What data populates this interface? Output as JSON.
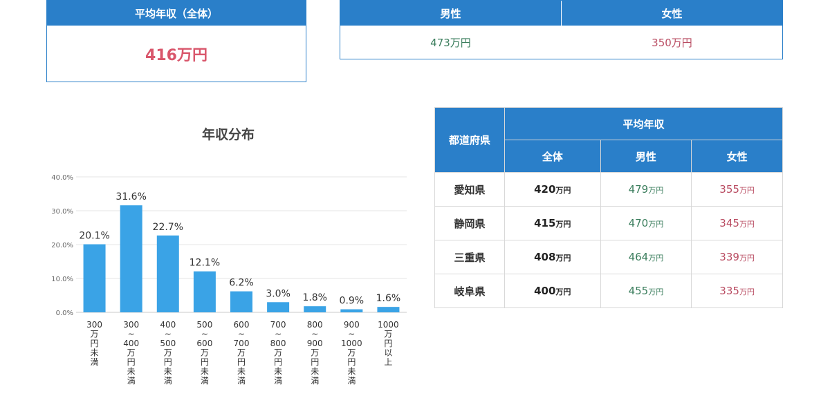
{
  "summary": {
    "overall": {
      "label": "平均年収（全体）",
      "value": "416万円"
    },
    "male": {
      "label": "男性",
      "value": "473万円"
    },
    "female": {
      "label": "女性",
      "value": "350万円"
    }
  },
  "chart_data": {
    "type": "bar",
    "title": "年収分布",
    "categories": [
      "300万円未満",
      "300〜400万円未満",
      "400〜500万円未満",
      "500〜600万円未満",
      "600〜700万円未満",
      "700〜800万円未満",
      "800〜900万円未満",
      "900〜1000万円未満",
      "1000万円以上"
    ],
    "category_lines": [
      [
        "300",
        "万",
        "円",
        "未",
        "満"
      ],
      [
        "300",
        "~",
        "400",
        "万",
        "円",
        "未",
        "満"
      ],
      [
        "400",
        "~",
        "500",
        "万",
        "円",
        "未",
        "満"
      ],
      [
        "500",
        "~",
        "600",
        "万",
        "円",
        "未",
        "満"
      ],
      [
        "600",
        "~",
        "700",
        "万",
        "円",
        "未",
        "満"
      ],
      [
        "700",
        "~",
        "800",
        "万",
        "円",
        "未",
        "満"
      ],
      [
        "800",
        "~",
        "900",
        "万",
        "円",
        "未",
        "満"
      ],
      [
        "900",
        "~",
        "1000",
        "万",
        "円",
        "未",
        "満"
      ],
      [
        "1000",
        "万",
        "円",
        "以",
        "上"
      ]
    ],
    "values": [
      20.1,
      31.6,
      22.7,
      12.1,
      6.2,
      3.0,
      1.8,
      0.9,
      1.6
    ],
    "data_labels": [
      "20.1%",
      "31.6%",
      "22.7%",
      "12.1%",
      "6.2%",
      "3.0%",
      "1.8%",
      "0.9%",
      "1.6%"
    ],
    "ylim": [
      0,
      40
    ],
    "yticks": [
      0,
      10,
      20,
      30,
      40
    ],
    "ytick_labels": [
      "0.0%",
      "10.0%",
      "20.0%",
      "30.0%",
      "40.0%"
    ],
    "grid": true,
    "bar_color": "#3aa3e6"
  },
  "prefecture_table": {
    "header_pref": "都道府県",
    "header_group": "平均年収",
    "header_all": "全体",
    "header_male": "男性",
    "header_female": "女性",
    "unit": "万円",
    "rows": [
      {
        "name": "愛知県",
        "all": "420",
        "male": "479",
        "female": "355"
      },
      {
        "name": "静岡県",
        "all": "415",
        "male": "470",
        "female": "345"
      },
      {
        "name": "三重県",
        "all": "408",
        "male": "464",
        "female": "339"
      },
      {
        "name": "岐阜県",
        "all": "400",
        "male": "455",
        "female": "335"
      }
    ]
  },
  "colors": {
    "header_blue": "#2a7fc9",
    "male": "#3a7d5c",
    "female": "#b94c62",
    "overall": "#d9566b"
  }
}
